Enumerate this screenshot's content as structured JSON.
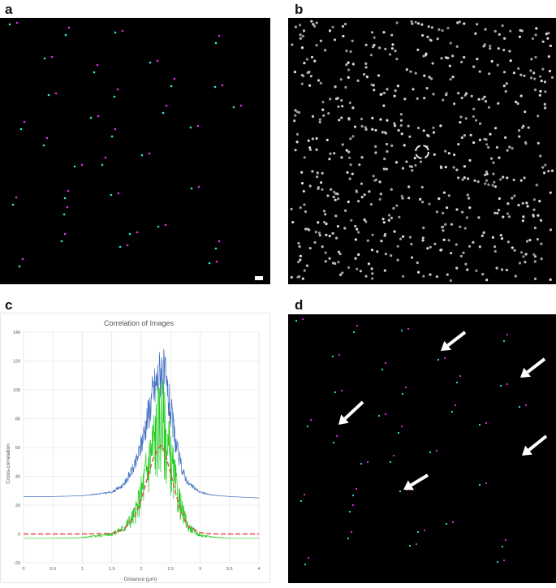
{
  "panels": {
    "a": {
      "letter": "a"
    },
    "b": {
      "letter": "b"
    },
    "c": {
      "letter": "c"
    },
    "d": {
      "letter": "d"
    }
  },
  "colors": {
    "magenta": "#e62ee6",
    "cyan": "#2ee6e6",
    "blue": "#4472c4",
    "green": "#22cc22",
    "red_dashed": "#ee4444"
  },
  "chart_data": {
    "type": "line",
    "title": "Correlation of Images",
    "xlabel": "Distance (µm)",
    "ylabel": "Cross-correlation",
    "xlim": [
      0,
      4
    ],
    "ylim": [
      -20,
      140
    ],
    "xticks": [
      "0",
      "0.5",
      "1",
      "1.5",
      "2",
      "2.5",
      "3",
      "3.5",
      "4"
    ],
    "yticks": [
      "-20",
      "0",
      "20",
      "40",
      "60",
      "80",
      "100",
      "120",
      "140"
    ],
    "grid": true,
    "series": [
      {
        "color": "#4472c4",
        "x": [
          0,
          0.5,
          1,
          1.5,
          1.7,
          1.9,
          2.0,
          2.1,
          2.2,
          2.3,
          2.35,
          2.4,
          2.5,
          2.6,
          2.7,
          2.8,
          3.0,
          3.2,
          3.5,
          4.0
        ],
        "values": [
          26,
          26,
          26.5,
          29,
          34,
          48,
          62,
          80,
          98,
          110,
          115,
          108,
          85,
          60,
          44,
          35,
          29,
          27,
          26,
          25
        ]
      },
      {
        "color": "#22cc22",
        "x": [
          0,
          0.5,
          1,
          1.5,
          1.7,
          1.9,
          2.0,
          2.1,
          2.2,
          2.3,
          2.35,
          2.4,
          2.5,
          2.6,
          2.7,
          2.8,
          3.0,
          3.2,
          3.5,
          4.0
        ],
        "values": [
          -3,
          -3,
          -2.5,
          0,
          4,
          14,
          28,
          45,
          62,
          74,
          80,
          70,
          50,
          30,
          15,
          5,
          -1,
          -2,
          -3,
          -3
        ]
      },
      {
        "color": "#ee4444",
        "dashed": true,
        "x": [
          0,
          0.5,
          1,
          1.5,
          1.7,
          1.9,
          2.0,
          2.1,
          2.2,
          2.3,
          2.35,
          2.4,
          2.5,
          2.6,
          2.7,
          2.8,
          3.0,
          3.2,
          3.5,
          4.0
        ],
        "values": [
          0,
          0,
          0,
          0.5,
          3,
          13,
          24,
          38,
          52,
          60,
          62,
          57,
          42,
          26,
          13,
          5,
          1,
          0,
          0,
          0
        ]
      }
    ]
  }
}
